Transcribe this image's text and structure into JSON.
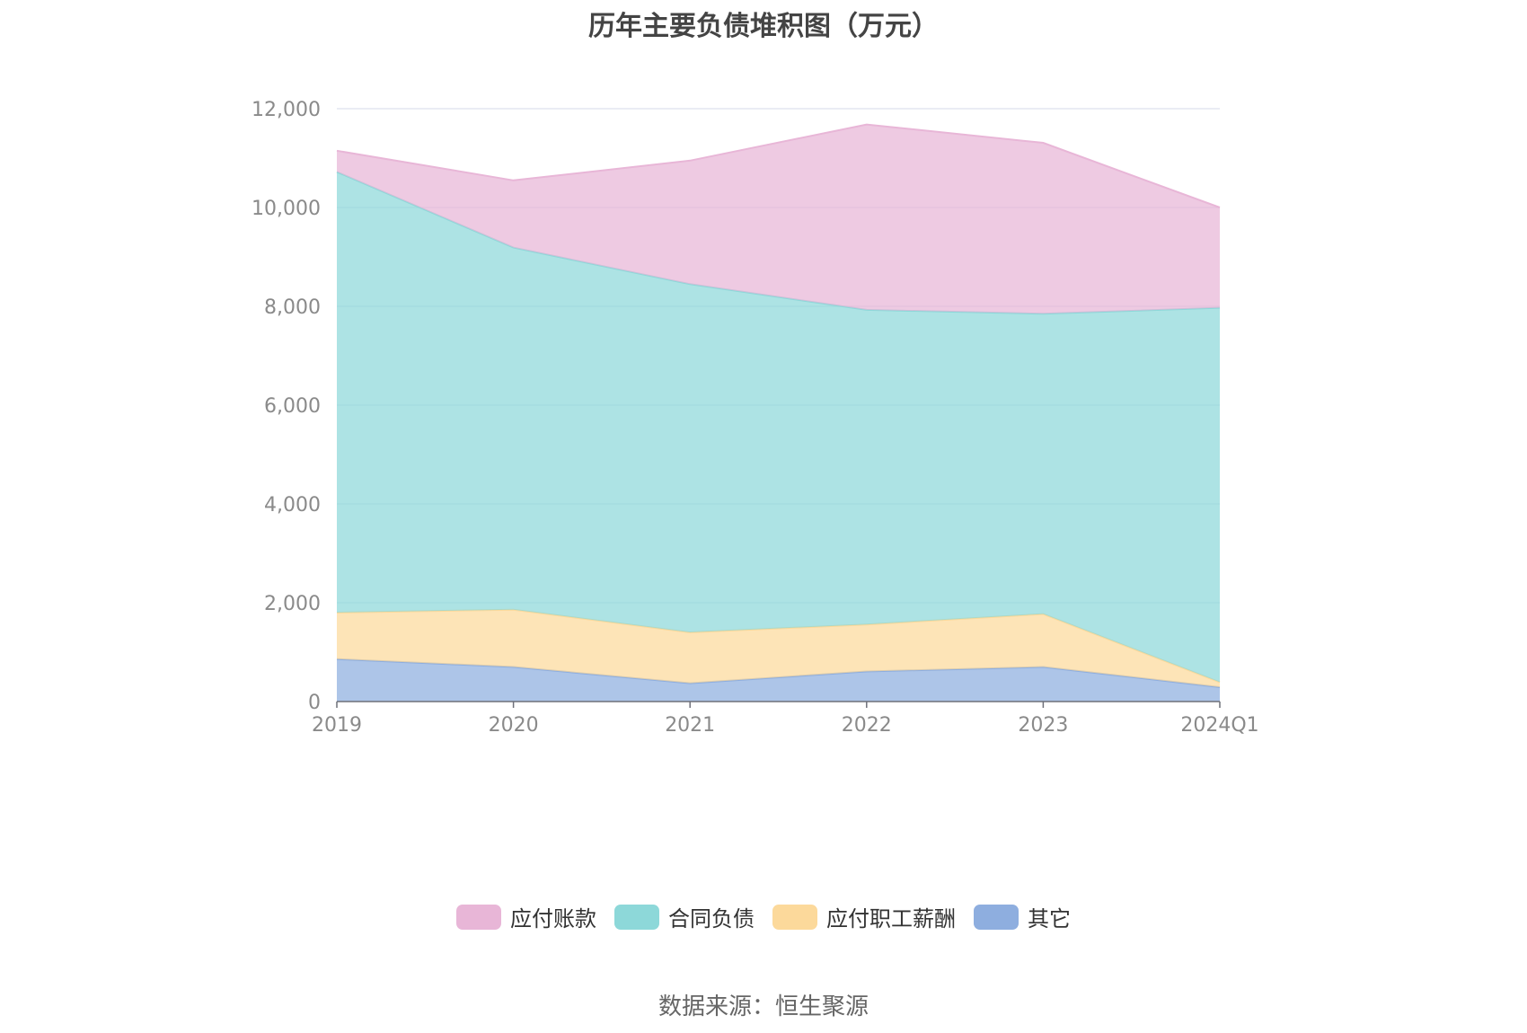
{
  "chart_data": {
    "type": "area",
    "stacked": true,
    "title": "历年主要负债堆积图（万元）",
    "x": [
      "2019",
      "2020",
      "2021",
      "2022",
      "2023",
      "2024Q1"
    ],
    "y_ticks": [
      "0",
      "2,000",
      "4,000",
      "6,000",
      "8,000",
      "10,000",
      "12,000"
    ],
    "ylim": [
      0,
      12000
    ],
    "grid": true,
    "legend_position": "bottom",
    "series": [
      {
        "name": "其它",
        "color": "#8eaedf",
        "values": [
          860,
          700,
          370,
          610,
          700,
          290
        ]
      },
      {
        "name": "应付职工薪酬",
        "color": "#fcd99b",
        "values": [
          940,
          1160,
          1030,
          950,
          1070,
          100
        ]
      },
      {
        "name": "合同负债",
        "color": "#8dd8d9",
        "values": [
          8920,
          7330,
          7050,
          6370,
          6080,
          7580
        ]
      },
      {
        "name": "应付账款",
        "color": "#e8b6d7",
        "values": [
          430,
          1360,
          2500,
          3750,
          3460,
          2030
        ]
      }
    ]
  },
  "legend_order": [
    "应付账款",
    "合同负债",
    "应付职工薪酬",
    "其它"
  ],
  "source": "数据来源：恒生聚源"
}
